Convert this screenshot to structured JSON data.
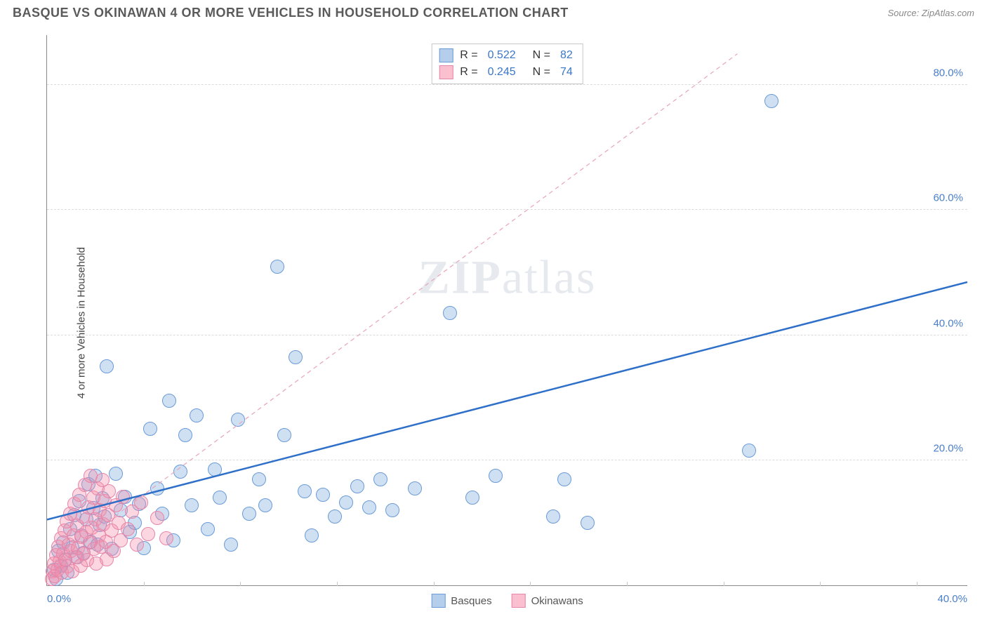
{
  "header": {
    "title": "BASQUE VS OKINAWAN 4 OR MORE VEHICLES IN HOUSEHOLD CORRELATION CHART",
    "source": "Source: ZipAtlas.com"
  },
  "chart": {
    "type": "scatter",
    "ylabel": "4 or more Vehicles in Household",
    "watermark": "ZIPatlas",
    "xlim": [
      0,
      40
    ],
    "ylim": [
      0,
      88
    ],
    "xticks": [
      {
        "v": 0,
        "label": "0.0%",
        "align": "left"
      },
      {
        "v": 40,
        "label": "40.0%",
        "align": "right"
      }
    ],
    "yticks": [
      {
        "v": 20,
        "label": "20.0%"
      },
      {
        "v": 40,
        "label": "40.0%"
      },
      {
        "v": 60,
        "label": "60.0%"
      },
      {
        "v": 80,
        "label": "80.0%"
      }
    ],
    "vgrid_x": [
      4.2,
      8.4,
      12.6,
      16.8,
      21.0,
      25.2,
      29.4,
      33.6,
      37.8
    ],
    "colors": {
      "basque_fill": "rgba(120,165,220,0.35)",
      "basque_stroke": "#6a9bd8",
      "okinawan_fill": "rgba(245,140,170,0.35)",
      "okinawan_stroke": "#e785a8",
      "basque_line": "#2d6fc9",
      "okinawan_line": "#e9a3b8",
      "grid": "#dcdcdc",
      "tick_text": "#4a7fc9"
    },
    "marker_radius": 10,
    "series": [
      {
        "key": "basques",
        "label": "Basques",
        "r_value": "0.522",
        "n_value": "82",
        "trend": {
          "x1": 0,
          "y1": 10.5,
          "x2": 40,
          "y2": 48.5,
          "dash": false,
          "width": 2.5
        },
        "points": [
          [
            0.3,
            2.5
          ],
          [
            0.4,
            1.0
          ],
          [
            0.5,
            5.5
          ],
          [
            0.6,
            3.2
          ],
          [
            0.7,
            6.8
          ],
          [
            0.8,
            4.0
          ],
          [
            0.9,
            2.0
          ],
          [
            1.0,
            9.0
          ],
          [
            1.1,
            6.1
          ],
          [
            1.2,
            11.2
          ],
          [
            1.3,
            4.5
          ],
          [
            1.4,
            13.5
          ],
          [
            1.5,
            8.0
          ],
          [
            1.6,
            5.2
          ],
          [
            1.7,
            10.6
          ],
          [
            1.8,
            16.2
          ],
          [
            1.9,
            7.0
          ],
          [
            2.0,
            12.3
          ],
          [
            2.1,
            17.5
          ],
          [
            2.2,
            6.5
          ],
          [
            2.3,
            9.6
          ],
          [
            2.4,
            13.9
          ],
          [
            2.5,
            11.0
          ],
          [
            2.6,
            35.0
          ],
          [
            2.8,
            5.8
          ],
          [
            3.0,
            17.8
          ],
          [
            3.2,
            12.0
          ],
          [
            3.4,
            14.2
          ],
          [
            3.6,
            8.5
          ],
          [
            3.8,
            10.0
          ],
          [
            4.0,
            13.0
          ],
          [
            4.2,
            6.0
          ],
          [
            4.5,
            25.0
          ],
          [
            4.8,
            15.5
          ],
          [
            5.0,
            11.5
          ],
          [
            5.3,
            29.5
          ],
          [
            5.5,
            7.2
          ],
          [
            5.8,
            18.2
          ],
          [
            6.0,
            24.0
          ],
          [
            6.3,
            12.8
          ],
          [
            6.5,
            27.2
          ],
          [
            7.0,
            9.0
          ],
          [
            7.3,
            18.5
          ],
          [
            7.5,
            14.0
          ],
          [
            8.0,
            6.5
          ],
          [
            8.3,
            26.5
          ],
          [
            8.8,
            11.5
          ],
          [
            9.2,
            17.0
          ],
          [
            9.5,
            12.8
          ],
          [
            10.0,
            51.0
          ],
          [
            10.3,
            24.0
          ],
          [
            10.8,
            36.5
          ],
          [
            11.2,
            15.0
          ],
          [
            11.5,
            8.0
          ],
          [
            12.0,
            14.5
          ],
          [
            12.5,
            11.0
          ],
          [
            13.0,
            13.2
          ],
          [
            13.5,
            15.8
          ],
          [
            14.0,
            12.5
          ],
          [
            14.5,
            17.0
          ],
          [
            15.0,
            12.0
          ],
          [
            16.0,
            15.5
          ],
          [
            17.5,
            43.5
          ],
          [
            18.5,
            14.0
          ],
          [
            19.5,
            17.5
          ],
          [
            22.0,
            11.0
          ],
          [
            22.5,
            17.0
          ],
          [
            23.5,
            10.0
          ],
          [
            30.5,
            21.5
          ],
          [
            31.5,
            77.5
          ]
        ]
      },
      {
        "key": "okinawans",
        "label": "Okinawans",
        "r_value": "0.245",
        "n_value": "74",
        "trend": {
          "x1": 0,
          "y1": 3.0,
          "x2": 30,
          "y2": 85.0,
          "dash": true,
          "width": 1.2
        },
        "points": [
          [
            0.2,
            1.0
          ],
          [
            0.25,
            2.2
          ],
          [
            0.3,
            3.5
          ],
          [
            0.35,
            1.5
          ],
          [
            0.4,
            4.8
          ],
          [
            0.45,
            2.5
          ],
          [
            0.5,
            6.2
          ],
          [
            0.55,
            3.8
          ],
          [
            0.6,
            7.5
          ],
          [
            0.65,
            2.0
          ],
          [
            0.7,
            5.0
          ],
          [
            0.75,
            8.8
          ],
          [
            0.8,
            4.2
          ],
          [
            0.85,
            10.2
          ],
          [
            0.9,
            3.0
          ],
          [
            0.95,
            6.5
          ],
          [
            1.0,
            11.5
          ],
          [
            1.05,
            5.5
          ],
          [
            1.1,
            2.2
          ],
          [
            1.15,
            8.0
          ],
          [
            1.2,
            13.0
          ],
          [
            1.25,
            4.5
          ],
          [
            1.3,
            9.5
          ],
          [
            1.35,
            6.0
          ],
          [
            1.4,
            14.5
          ],
          [
            1.45,
            3.2
          ],
          [
            1.5,
            7.8
          ],
          [
            1.55,
            11.0
          ],
          [
            1.6,
            5.0
          ],
          [
            1.65,
            16.0
          ],
          [
            1.7,
            8.5
          ],
          [
            1.75,
            4.0
          ],
          [
            1.8,
            12.5
          ],
          [
            1.85,
            6.8
          ],
          [
            1.9,
            17.5
          ],
          [
            1.95,
            9.2
          ],
          [
            2.0,
            14.0
          ],
          [
            2.05,
            5.8
          ],
          [
            2.1,
            10.5
          ],
          [
            2.15,
            3.5
          ],
          [
            2.2,
            15.5
          ],
          [
            2.25,
            8.0
          ],
          [
            2.3,
            12.0
          ],
          [
            2.35,
            6.2
          ],
          [
            2.4,
            16.8
          ],
          [
            2.45,
            9.8
          ],
          [
            2.5,
            13.5
          ],
          [
            2.55,
            7.0
          ],
          [
            2.6,
            4.2
          ],
          [
            2.65,
            11.2
          ],
          [
            2.7,
            15.0
          ],
          [
            2.8,
            8.8
          ],
          [
            2.9,
            5.5
          ],
          [
            3.0,
            12.8
          ],
          [
            3.1,
            10.0
          ],
          [
            3.2,
            7.2
          ],
          [
            3.3,
            14.2
          ],
          [
            3.5,
            9.0
          ],
          [
            3.7,
            11.8
          ],
          [
            3.9,
            6.5
          ],
          [
            4.1,
            13.2
          ],
          [
            4.4,
            8.2
          ],
          [
            4.8,
            10.8
          ],
          [
            5.2,
            7.5
          ]
        ]
      }
    ],
    "legend_bottom": [
      {
        "label": "Basques",
        "fill": "rgba(120,165,220,0.55)",
        "stroke": "#6a9bd8"
      },
      {
        "label": "Okinawans",
        "fill": "rgba(245,140,170,0.55)",
        "stroke": "#e785a8"
      }
    ]
  }
}
